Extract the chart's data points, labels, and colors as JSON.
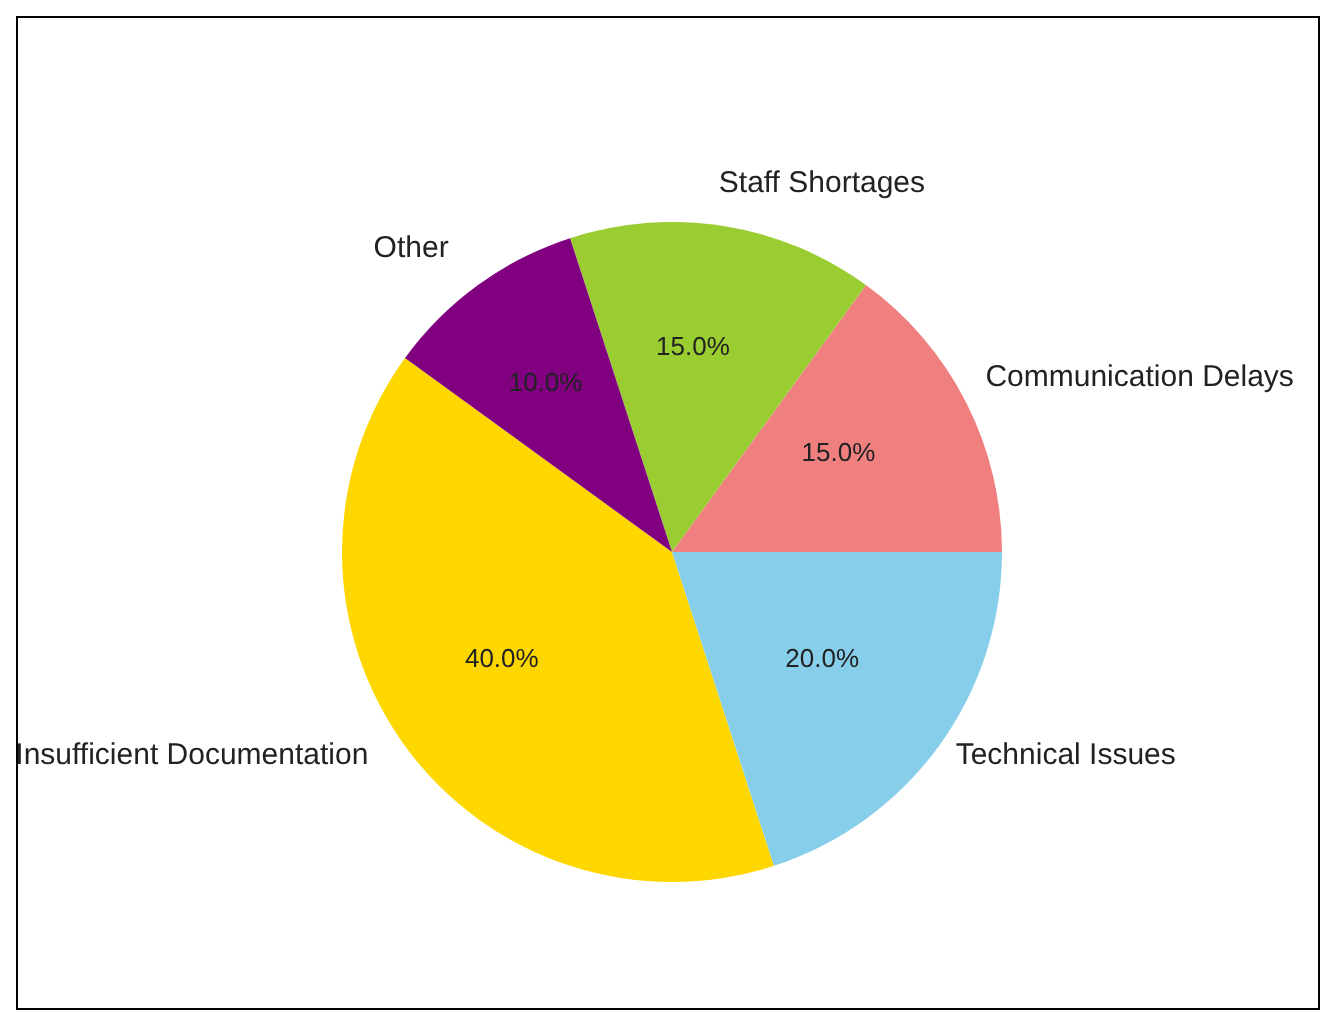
{
  "chart_data": {
    "type": "pie",
    "categories": [
      "Insufficient Documentation",
      "Technical Issues",
      "Communication Delays",
      "Staff Shortages",
      "Other"
    ],
    "values": [
      40,
      20,
      15,
      15,
      10
    ],
    "colors": [
      "#ffd700",
      "#87ceeb",
      "#f08080",
      "#9acd32",
      "#800080"
    ],
    "value_labels": [
      "40.0%",
      "20.0%",
      "15.0%",
      "15.0%",
      "10.0%"
    ]
  }
}
